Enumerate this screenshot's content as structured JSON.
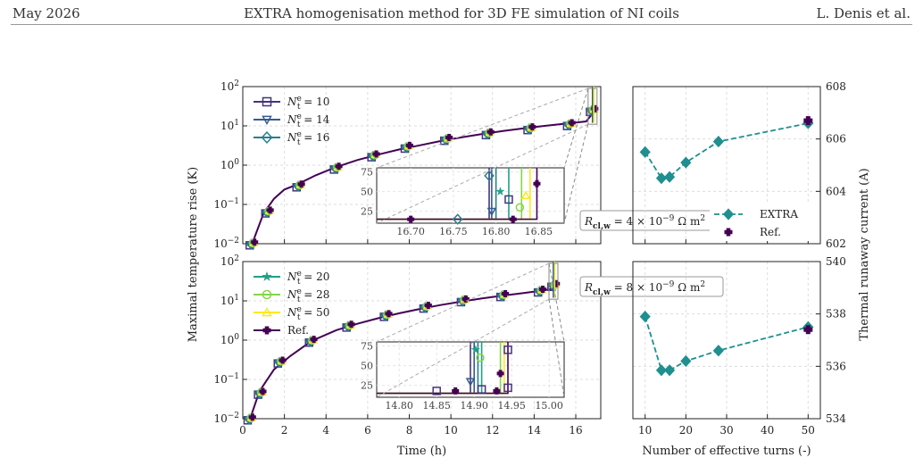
{
  "header": {
    "left": "May 2026",
    "center": "EXTRA homogenisation method for 3D FE simulation of NI coils",
    "right": "L. Denis et al."
  },
  "chart_data": [
    {
      "type": "line",
      "title": "",
      "xlabel": "Time (h)",
      "ylabel": "Maximal temperature rise (K)",
      "yscale": "log",
      "xlim": [
        0,
        17.2
      ],
      "ylim": [
        0.01,
        100
      ],
      "xticks": [
        "0",
        "2",
        "4",
        "6",
        "8",
        "10",
        "12",
        "14",
        "16"
      ],
      "yticks": [
        "10^{-2}",
        "10^{-1}",
        "10^{0}",
        "10^{1}",
        "10^{2}"
      ],
      "legend": [
        {
          "name": "N_t^e = 10",
          "sub": "t",
          "sup": "e",
          "val": "10",
          "color": "#46327e",
          "marker": "square"
        },
        {
          "name": "N_t^e = 14",
          "sub": "t",
          "sup": "e",
          "val": "14",
          "color": "#365c8d",
          "marker": "tri-down"
        },
        {
          "name": "N_t^e = 16",
          "sub": "t",
          "sup": "e",
          "val": "16",
          "color": "#277f8e",
          "marker": "diamond"
        }
      ],
      "series": [
        {
          "name": "Ref.",
          "color": "#440154",
          "x": [
            0.45,
            1.0,
            1.5,
            2.0,
            2.6,
            3.5,
            4.5,
            5.5,
            6.5,
            7.5,
            8.5,
            9.5,
            10.5,
            11.5,
            12.5,
            13.5,
            14.5,
            15.5,
            16.5,
            16.85
          ],
          "y": [
            0.01,
            0.06,
            0.14,
            0.24,
            0.32,
            0.55,
            0.9,
            1.35,
            1.85,
            2.5,
            3.2,
            4.1,
            5.1,
            6.2,
            7.4,
            8.7,
            10.0,
            11.4,
            13.0,
            22.0
          ]
        },
        {
          "name": "markers",
          "color": "#440154",
          "x": [
            0.45,
            1.2,
            2.7,
            4.5,
            6.3,
            7.9,
            9.8,
            11.8,
            13.8,
            15.7,
            16.8
          ],
          "y": [
            0.01,
            0.065,
            0.3,
            0.85,
            1.75,
            2.9,
            4.6,
            6.4,
            8.6,
            10.9,
            25.0
          ]
        }
      ],
      "annotation": "R_{cl,w} = 4 × 10^{-9} Ω m^2",
      "inset": {
        "xticks": [
          "16.70",
          "16.75",
          "16.80",
          "16.85"
        ],
        "yticks": [
          "25",
          "50",
          "75"
        ],
        "xlim": [
          16.66,
          16.88
        ],
        "ylim": [
          10,
          80
        ]
      }
    },
    {
      "type": "line",
      "title": "",
      "xlabel": "Time (h)",
      "ylabel": "Maximal temperature rise (K)",
      "yscale": "log",
      "xlim": [
        0,
        17.2
      ],
      "ylim": [
        0.01,
        100
      ],
      "xticks": [
        "0",
        "2",
        "4",
        "6",
        "8",
        "10",
        "12",
        "14",
        "16"
      ],
      "yticks": [
        "10^{-2}",
        "10^{-1}",
        "10^{0}",
        "10^{1}",
        "10^{2}"
      ],
      "legend": [
        {
          "name": "N_t^e = 20",
          "sub": "t",
          "sup": "e",
          "val": "20",
          "color": "#1fa187",
          "marker": "star"
        },
        {
          "name": "N_t^e = 28",
          "sub": "t",
          "sup": "e",
          "val": "28",
          "color": "#86d549",
          "marker": "circle"
        },
        {
          "name": "N_t^e = 50",
          "sub": "t",
          "sup": "e",
          "val": "50",
          "color": "#fde725",
          "marker": "tri-up"
        },
        {
          "name": "Ref.",
          "color": "#440154",
          "marker": "plus"
        }
      ],
      "series": [
        {
          "name": "Ref.",
          "color": "#440154",
          "x": [
            0.35,
            0.8,
            1.5,
            2.3,
            3.3,
            4.5,
            5.5,
            6.5,
            7.5,
            8.5,
            9.5,
            10.5,
            11.5,
            12.5,
            13.5,
            14.3,
            14.8,
            14.95
          ],
          "y": [
            0.01,
            0.05,
            0.18,
            0.4,
            0.95,
            1.8,
            2.6,
            3.6,
            4.8,
            6.2,
            7.8,
            9.6,
            11.5,
            13.6,
            15.8,
            18.0,
            20.0,
            25.0
          ]
        },
        {
          "name": "markers",
          "color": "#440154",
          "x": [
            0.35,
            0.85,
            1.8,
            3.3,
            5.1,
            6.9,
            8.8,
            10.6,
            12.5,
            14.3,
            14.95
          ],
          "y": [
            0.01,
            0.045,
            0.28,
            0.95,
            2.3,
            4.3,
            7.0,
            10.2,
            13.8,
            18.0,
            25.0
          ]
        }
      ],
      "annotation": "R_{cl,w} = 8 × 10^{-9} Ω m^2",
      "inset": {
        "xticks": [
          "14.80",
          "14.85",
          "14.90",
          "14.95",
          "15.00"
        ],
        "yticks": [
          "25",
          "50",
          "75"
        ],
        "xlim": [
          14.77,
          15.02
        ],
        "ylim": [
          10,
          80
        ]
      }
    },
    {
      "type": "line",
      "title": "",
      "xlabel": "Number of effective turns (-)",
      "ylabel": "Thermal runaway current (A)",
      "xlim": [
        7,
        53
      ],
      "ylim": [
        602,
        608
      ],
      "xticks": [
        "10",
        "20",
        "30",
        "40",
        "50"
      ],
      "yticks": [
        "602",
        "604",
        "606",
        "608"
      ],
      "series": [
        {
          "name": "EXTRA",
          "color": "#1f8f8f",
          "x": [
            10,
            14,
            16,
            20,
            28,
            50
          ],
          "y": [
            605.5,
            604.5,
            604.55,
            605.1,
            605.9,
            606.6
          ]
        },
        {
          "name": "Ref.",
          "color": "#440154",
          "x": [
            50
          ],
          "y": [
            606.7
          ]
        }
      ],
      "legend": [
        {
          "name": "EXTRA",
          "color": "#1f8f8f",
          "marker": "diamond"
        },
        {
          "name": "Ref.",
          "color": "#440154",
          "marker": "plus"
        }
      ]
    },
    {
      "type": "line",
      "title": "",
      "xlabel": "Number of effective turns (-)",
      "ylabel": "Thermal runaway current (A)",
      "xlim": [
        7,
        53
      ],
      "ylim": [
        534,
        540
      ],
      "xticks": [
        "10",
        "20",
        "30",
        "40",
        "50"
      ],
      "yticks": [
        "534",
        "536",
        "538",
        "540"
      ],
      "series": [
        {
          "name": "EXTRA",
          "color": "#1f8f8f",
          "x": [
            10,
            14,
            16,
            20,
            28,
            50
          ],
          "y": [
            537.9,
            535.85,
            535.85,
            536.2,
            536.6,
            537.5
          ]
        },
        {
          "name": "Ref.",
          "color": "#440154",
          "x": [
            50
          ],
          "y": [
            537.4
          ]
        }
      ]
    }
  ]
}
